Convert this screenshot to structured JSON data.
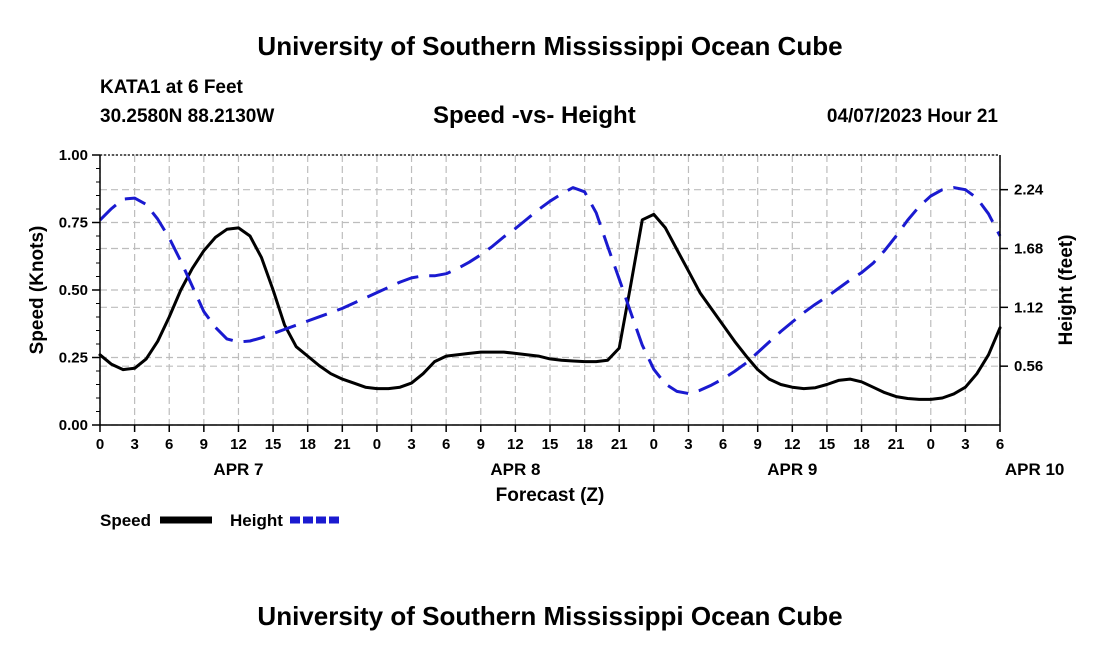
{
  "page": {
    "top_title": "University of Southern Mississippi Ocean Cube",
    "bottom_title": "University of Southern Mississippi Ocean Cube",
    "station": "KATA1 at 6 Feet",
    "coords": "30.2580N  88.2130W",
    "subtitle": "Speed -vs- Height",
    "datetime": "04/07/2023 Hour 21"
  },
  "chart_data": {
    "type": "line",
    "title": "Speed -vs- Height",
    "xlabel": "Forecast (Z)",
    "ylabel": "Speed (Knots)",
    "y2label": "Height (feet)",
    "x_ticks": [
      "0",
      "3",
      "6",
      "9",
      "12",
      "15",
      "18",
      "21",
      "0",
      "3",
      "6",
      "9",
      "12",
      "15",
      "18",
      "21",
      "0",
      "3",
      "6",
      "9",
      "12",
      "15",
      "18",
      "21",
      "0",
      "3",
      "6"
    ],
    "x_hours_range": [
      0,
      78
    ],
    "day_labels": [
      {
        "label": "APR 7",
        "hour": 12
      },
      {
        "label": "APR 8",
        "hour": 36
      },
      {
        "label": "APR 9",
        "hour": 60
      },
      {
        "label": "APR 10",
        "hour": 81
      }
    ],
    "ylim": [
      0,
      1.0
    ],
    "y_ticks": [
      "0.00",
      "0.25",
      "0.50",
      "0.75",
      "1.00"
    ],
    "y2lim": [
      0.0,
      2.57
    ],
    "y2_ticks": [
      "0.56",
      "1.12",
      "1.68",
      "2.24"
    ],
    "grid": true,
    "legend": "bottom-left",
    "series": [
      {
        "name": "Speed",
        "axis": "left",
        "color": "#000000",
        "style": "solid",
        "points": [
          [
            0,
            0.26
          ],
          [
            1,
            0.225
          ],
          [
            2,
            0.205
          ],
          [
            3,
            0.21
          ],
          [
            4,
            0.245
          ],
          [
            5,
            0.31
          ],
          [
            6,
            0.4
          ],
          [
            7,
            0.5
          ],
          [
            8,
            0.58
          ],
          [
            9,
            0.645
          ],
          [
            10,
            0.695
          ],
          [
            11,
            0.725
          ],
          [
            12,
            0.73
          ],
          [
            13,
            0.7
          ],
          [
            14,
            0.62
          ],
          [
            15,
            0.5
          ],
          [
            16,
            0.37
          ],
          [
            17,
            0.29
          ],
          [
            18,
            0.255
          ],
          [
            19,
            0.22
          ],
          [
            20,
            0.19
          ],
          [
            21,
            0.17
          ],
          [
            22,
            0.155
          ],
          [
            23,
            0.14
          ],
          [
            24,
            0.135
          ],
          [
            25,
            0.135
          ],
          [
            26,
            0.14
          ],
          [
            27,
            0.155
          ],
          [
            28,
            0.19
          ],
          [
            29,
            0.235
          ],
          [
            30,
            0.255
          ],
          [
            31,
            0.26
          ],
          [
            32,
            0.265
          ],
          [
            33,
            0.27
          ],
          [
            34,
            0.27
          ],
          [
            35,
            0.27
          ],
          [
            36,
            0.265
          ],
          [
            37,
            0.26
          ],
          [
            38,
            0.255
          ],
          [
            39,
            0.245
          ],
          [
            40,
            0.24
          ],
          [
            41,
            0.237
          ],
          [
            42,
            0.235
          ],
          [
            43,
            0.235
          ],
          [
            44,
            0.24
          ],
          [
            45,
            0.285
          ],
          [
            46,
            0.52
          ],
          [
            47,
            0.76
          ],
          [
            48,
            0.78
          ],
          [
            49,
            0.73
          ],
          [
            50,
            0.65
          ],
          [
            51,
            0.57
          ],
          [
            52,
            0.49
          ],
          [
            53,
            0.43
          ],
          [
            54,
            0.37
          ],
          [
            55,
            0.31
          ],
          [
            56,
            0.255
          ],
          [
            57,
            0.205
          ],
          [
            58,
            0.17
          ],
          [
            59,
            0.15
          ],
          [
            60,
            0.14
          ],
          [
            61,
            0.135
          ],
          [
            62,
            0.138
          ],
          [
            63,
            0.15
          ],
          [
            64,
            0.165
          ],
          [
            65,
            0.17
          ],
          [
            66,
            0.16
          ],
          [
            67,
            0.14
          ],
          [
            68,
            0.12
          ],
          [
            69,
            0.105
          ],
          [
            70,
            0.098
          ],
          [
            71,
            0.095
          ],
          [
            72,
            0.095
          ],
          [
            73,
            0.1
          ],
          [
            74,
            0.115
          ],
          [
            75,
            0.14
          ],
          [
            76,
            0.19
          ],
          [
            77,
            0.26
          ],
          [
            78,
            0.36
          ]
        ]
      },
      {
        "name": "Height",
        "axis": "right",
        "color": "#1a1ad0",
        "style": "dashed",
        "points": [
          [
            0,
            1.95
          ],
          [
            1,
            2.06
          ],
          [
            2,
            2.15
          ],
          [
            3,
            2.16
          ],
          [
            4,
            2.1
          ],
          [
            5,
            1.96
          ],
          [
            6,
            1.78
          ],
          [
            7,
            1.56
          ],
          [
            8,
            1.32
          ],
          [
            9,
            1.08
          ],
          [
            10,
            0.93
          ],
          [
            11,
            0.82
          ],
          [
            12,
            0.79
          ],
          [
            13,
            0.8
          ],
          [
            14,
            0.83
          ],
          [
            15,
            0.87
          ],
          [
            16,
            0.91
          ],
          [
            17,
            0.95
          ],
          [
            18,
            0.99
          ],
          [
            19,
            1.03
          ],
          [
            20,
            1.07
          ],
          [
            21,
            1.11
          ],
          [
            22,
            1.16
          ],
          [
            23,
            1.21
          ],
          [
            24,
            1.26
          ],
          [
            25,
            1.31
          ],
          [
            26,
            1.36
          ],
          [
            27,
            1.4
          ],
          [
            28,
            1.42
          ],
          [
            29,
            1.42
          ],
          [
            30,
            1.44
          ],
          [
            31,
            1.49
          ],
          [
            32,
            1.55
          ],
          [
            33,
            1.62
          ],
          [
            34,
            1.7
          ],
          [
            35,
            1.79
          ],
          [
            36,
            1.87
          ],
          [
            37,
            1.96
          ],
          [
            38,
            2.05
          ],
          [
            39,
            2.13
          ],
          [
            40,
            2.2
          ],
          [
            41,
            2.26
          ],
          [
            42,
            2.22
          ],
          [
            43,
            2.02
          ],
          [
            44,
            1.7
          ],
          [
            45,
            1.39
          ],
          [
            46,
            1.07
          ],
          [
            47,
            0.76
          ],
          [
            48,
            0.53
          ],
          [
            49,
            0.39
          ],
          [
            50,
            0.32
          ],
          [
            51,
            0.3
          ],
          [
            52,
            0.33
          ],
          [
            53,
            0.38
          ],
          [
            54,
            0.44
          ],
          [
            55,
            0.51
          ],
          [
            56,
            0.59
          ],
          [
            57,
            0.69
          ],
          [
            58,
            0.79
          ],
          [
            59,
            0.89
          ],
          [
            60,
            0.98
          ],
          [
            61,
            1.07
          ],
          [
            62,
            1.15
          ],
          [
            63,
            1.22
          ],
          [
            64,
            1.3
          ],
          [
            65,
            1.38
          ],
          [
            66,
            1.45
          ],
          [
            67,
            1.54
          ],
          [
            68,
            1.66
          ],
          [
            69,
            1.8
          ],
          [
            70,
            1.95
          ],
          [
            71,
            2.08
          ],
          [
            72,
            2.18
          ],
          [
            73,
            2.24
          ],
          [
            74,
            2.26
          ],
          [
            75,
            2.24
          ],
          [
            76,
            2.16
          ],
          [
            77,
            2.01
          ],
          [
            78,
            1.8
          ]
        ]
      }
    ]
  }
}
